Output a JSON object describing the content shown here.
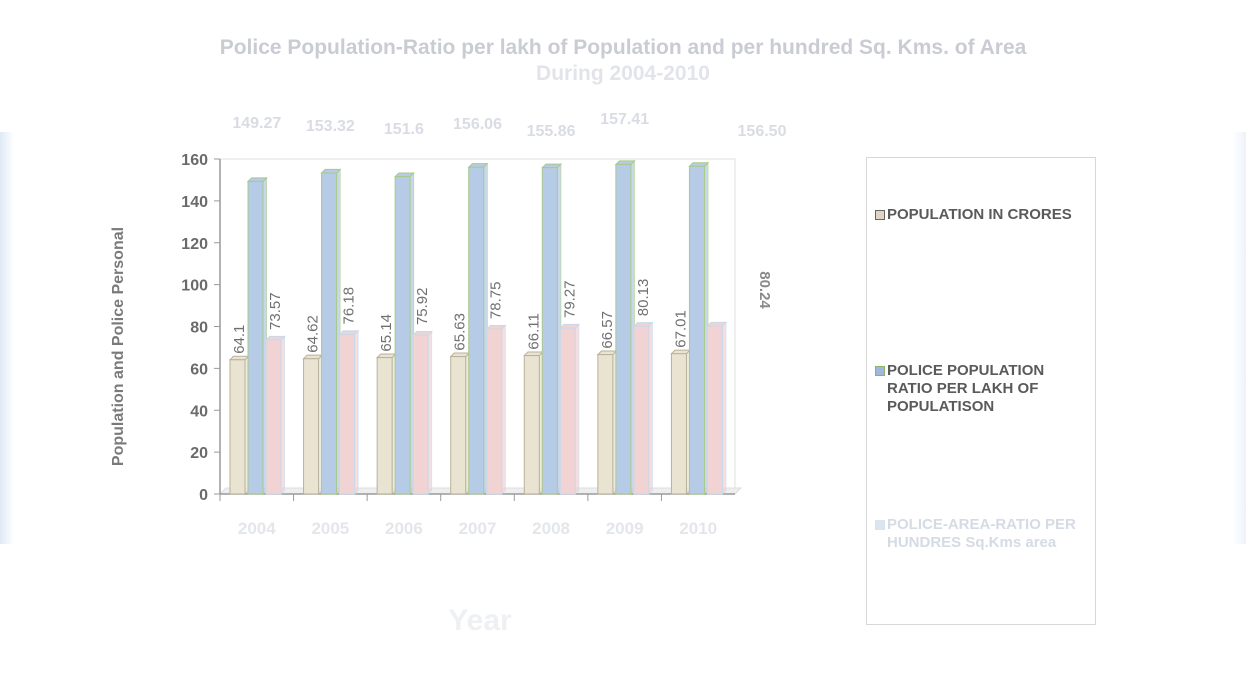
{
  "chart_data": {
    "type": "bar",
    "title": "Police Population-Ratio per lakh of Population and per hundred Sq. Kms. of Area",
    "subtitle": "During 2004-2010",
    "xlabel": "Year",
    "ylabel": "Population and Police Personal",
    "ylim": [
      0,
      160
    ],
    "yticks": [
      "0",
      "20",
      "40",
      "60",
      "80",
      "100",
      "120",
      "140",
      "160"
    ],
    "categories": [
      "2004",
      "2005",
      "2006",
      "2007",
      "2008",
      "2009",
      "2010"
    ],
    "series": [
      {
        "name": "POPULATION IN CRORES",
        "values": [
          64.1,
          64.62,
          65.14,
          65.63,
          66.11,
          66.57,
          67.01
        ],
        "labels": [
          "64.1",
          "64.62",
          "65.14",
          "65.63",
          "66.11",
          "66.57",
          "67.01"
        ],
        "color": "#e9e3d2"
      },
      {
        "name": "POLICE POPULATION RATIO PER LAKH OF POPULATISON",
        "values": [
          149.27,
          153.32,
          151.6,
          156.06,
          155.86,
          157.41,
          156.5
        ],
        "labels": [
          "149.27",
          "153.32",
          "151.6",
          "156.06",
          "155.86",
          "157.41",
          "156.50"
        ],
        "color": "#b6cbe6"
      },
      {
        "name": "POLICE-AREA-RATIO PER HUNDRES Sq.Kms area",
        "values": [
          73.57,
          76.18,
          75.92,
          78.75,
          79.27,
          80.13,
          80.24
        ],
        "labels": [
          "73.57",
          "76.18",
          "75.92",
          "78.75",
          "79.27",
          "80.13",
          "80.24"
        ],
        "color": "#f2d3d3"
      }
    ],
    "legend_position": "right",
    "grid": false
  },
  "legend": {
    "items": [
      {
        "label": "POPULATION IN CRORES",
        "color": "#ded6c0"
      },
      {
        "label": "POLICE POPULATION RATIO PER LAKH OF POPULATISON",
        "color": "#9fb8db"
      },
      {
        "label": "POLICE-AREA-RATIO PER HUNDRES Sq.Kms area",
        "color": "#c8d8ec"
      }
    ]
  }
}
